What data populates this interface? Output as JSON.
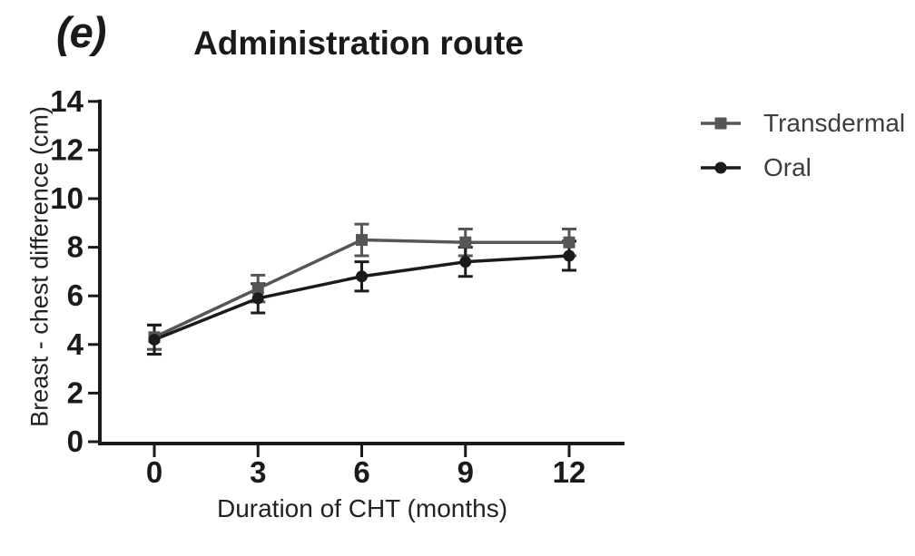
{
  "figure_label": "(e)",
  "title": "Administration route",
  "colors": {
    "axis": "#1a1a1a",
    "background": "#ffffff",
    "legend_text": "#3d3d3d",
    "transdermal": "#565656",
    "oral": "#1b1b1b"
  },
  "chart_data": {
    "type": "line",
    "title": "Administration route",
    "xlabel": "Duration of CHT (months)",
    "ylabel": "Breast - chest difference (cm)",
    "x": [
      0,
      3,
      6,
      9,
      12
    ],
    "x_ticks": [
      0,
      3,
      6,
      9,
      12
    ],
    "y_ticks": [
      0,
      2,
      4,
      6,
      8,
      10,
      12,
      14
    ],
    "xlim": [
      -1.6,
      13.6
    ],
    "ylim": [
      0,
      14
    ],
    "grid": false,
    "legend_position": "right",
    "error_bars": true,
    "series": [
      {
        "name": "Transdermal",
        "marker": "square",
        "color": "#565656",
        "values": [
          4.3,
          6.3,
          8.3,
          8.2,
          8.2
        ],
        "errors": [
          0.5,
          0.55,
          0.65,
          0.55,
          0.55
        ]
      },
      {
        "name": "Oral",
        "marker": "circle",
        "color": "#1b1b1b",
        "values": [
          4.2,
          5.9,
          6.8,
          7.4,
          7.65
        ],
        "errors": [
          0.6,
          0.6,
          0.6,
          0.6,
          0.6
        ]
      }
    ]
  }
}
